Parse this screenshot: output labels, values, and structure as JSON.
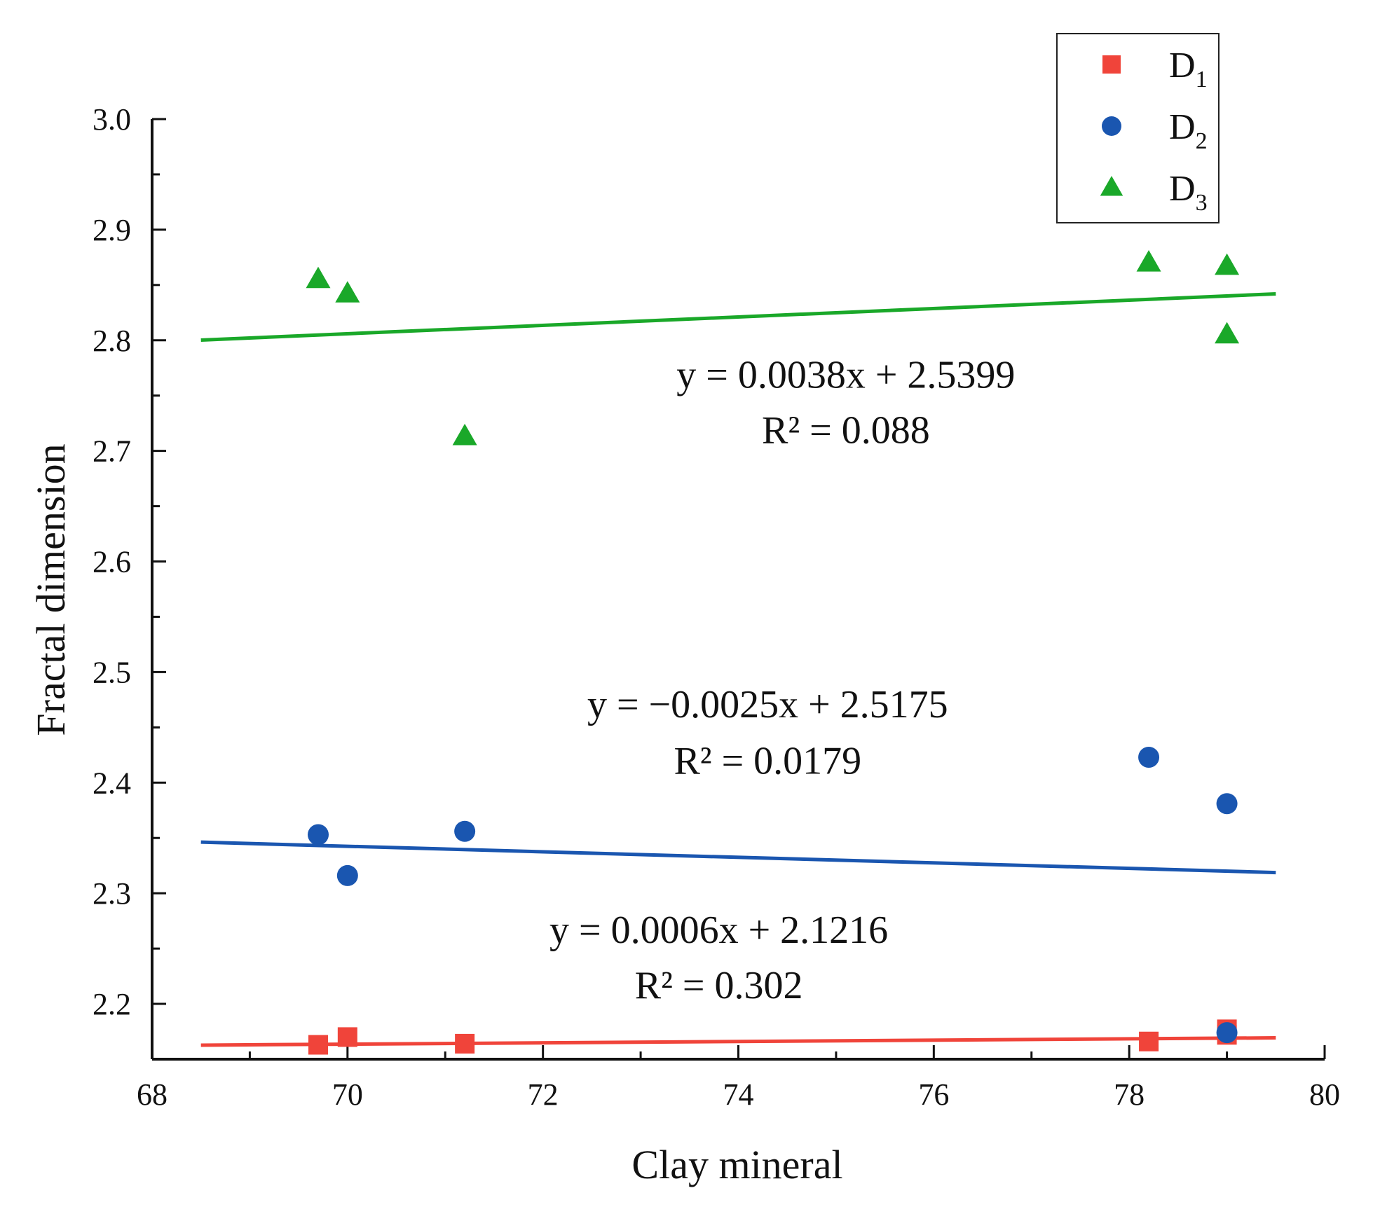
{
  "chart_data": {
    "type": "scatter",
    "xlabel": "Clay mineral",
    "ylabel": "Fractal dimension",
    "xlim": [
      68,
      80
    ],
    "ylim": [
      2.15,
      3.0
    ],
    "x_ticks": [
      68,
      70,
      72,
      74,
      76,
      78,
      80
    ],
    "x_tick_labels": [
      "68",
      "70",
      "72",
      "74",
      "76",
      "78",
      "80"
    ],
    "y_ticks": [
      2.2,
      2.3,
      2.4,
      2.5,
      2.6,
      2.7,
      2.8,
      2.9,
      3.0
    ],
    "y_tick_labels": [
      "2.2",
      "2.3",
      "2.4",
      "2.5",
      "2.6",
      "2.7",
      "2.8",
      "2.9",
      "3.0"
    ],
    "grid": false,
    "legend_position": "top-right",
    "series": [
      {
        "name": "D1",
        "legend_main": "D",
        "legend_sub": "1",
        "marker": "square",
        "color": "#f0443a",
        "x": [
          69.7,
          70.0,
          71.2,
          78.2,
          79.0,
          79.0
        ],
        "y": [
          2.163,
          2.17,
          2.164,
          2.166,
          2.177,
          2.172
        ],
        "fit": {
          "slope": 0.0006,
          "intercept": 2.1216,
          "x_range": [
            68.5,
            79.5
          ],
          "equation": "y = 0.0006x + 2.1216",
          "r2": "R² = 0.302"
        }
      },
      {
        "name": "D2",
        "legend_main": "D",
        "legend_sub": "2",
        "marker": "circle",
        "color": "#1a56b0",
        "x": [
          69.7,
          70.0,
          71.2,
          78.2,
          79.0,
          79.0
        ],
        "y": [
          2.353,
          2.316,
          2.356,
          2.423,
          2.381,
          2.174
        ],
        "fit": {
          "slope": -0.0025,
          "intercept": 2.5175,
          "x_range": [
            68.5,
            79.5
          ],
          "equation": "y = −0.0025x + 2.5175",
          "r2": "R² = 0.0179"
        }
      },
      {
        "name": "D3",
        "legend_main": "D",
        "legend_sub": "3",
        "marker": "triangle",
        "color": "#1aa829",
        "x": [
          69.7,
          70.0,
          71.2,
          78.2,
          79.0,
          79.0
        ],
        "y": [
          2.855,
          2.842,
          2.713,
          2.87,
          2.867,
          2.805
        ],
        "fit": {
          "slope": 0.0038,
          "intercept": 2.5399,
          "x_range": [
            68.5,
            79.5
          ],
          "equation": "y = 0.0038x + 2.5399",
          "r2": "R² = 0.088"
        }
      }
    ]
  }
}
